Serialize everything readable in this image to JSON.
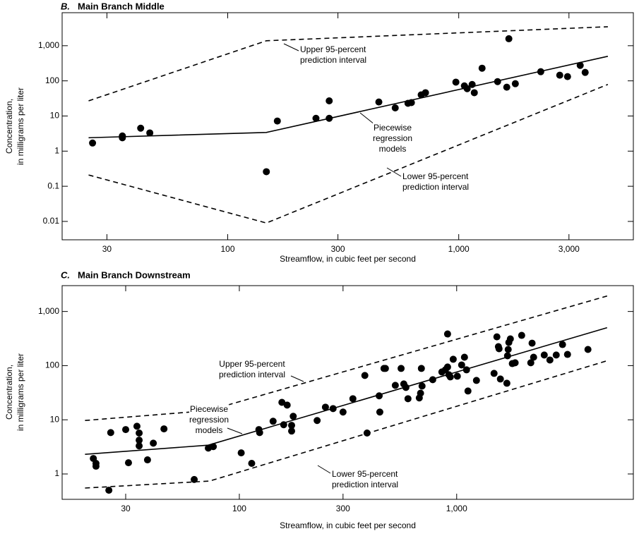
{
  "chart_data": [
    {
      "type": "scatter",
      "panel": "B.",
      "title": "Main Branch Middle",
      "x_label": "Streamflow, in cubic feet per second",
      "y_label": [
        "Concentration,",
        "in milligrams per liter"
      ],
      "log_x": true,
      "log_y": true,
      "color": "#000000",
      "xlim": [
        19.2,
        5700
      ],
      "ylim": [
        0.003,
        8700
      ],
      "xticks": [
        30,
        100,
        300,
        {
          "value": 1000,
          "label": "1,000"
        },
        {
          "value": 3000,
          "label": "3,000"
        }
      ],
      "yticks": [
        0.01,
        0.1,
        1,
        10,
        100,
        {
          "value": 1000,
          "label": "1,000"
        }
      ],
      "x": [
        26,
        35,
        35,
        42,
        46,
        147,
        164,
        241,
        275,
        275,
        451,
        531,
        603,
        624,
        688,
        718,
        972,
        1058,
        1088,
        1143,
        1168,
        1262,
        1473,
        1614,
        1648,
        1758,
        2265,
        2737,
        2958,
        3356,
        3526
      ],
      "values": [
        1.7,
        2.7,
        2.4,
        4.5,
        3.3,
        0.26,
        7.2,
        8.6,
        8.6,
        27,
        25,
        17,
        23,
        24,
        40,
        46,
        92,
        72,
        60,
        79,
        46,
        229,
        95,
        66,
        1580,
        83,
        182,
        145,
        132,
        275,
        174
      ],
      "lines": [
        {
          "style": "dashed",
          "x": [
            25,
            147,
            4420
          ],
          "values": [
            27,
            1380,
            3470
          ]
        },
        {
          "style": "solid",
          "x": [
            25,
            147,
            4420
          ],
          "values": [
            2.4,
            3.4,
            500
          ]
        },
        {
          "style": "dashed",
          "x": [
            25,
            147,
            4420
          ],
          "values": [
            0.21,
            0.009,
            79
          ]
        }
      ],
      "annotations": [
        [
          "Upper 95-percent",
          "prediction interval"
        ],
        [
          "Piecewise",
          "regression",
          "models"
        ],
        [
          "Lower 95-percent",
          "prediction interval"
        ]
      ]
    },
    {
      "type": "scatter",
      "panel": "C.",
      "title": "Main Branch Downstream",
      "x_label": "Streamflow, in cubic feet per second",
      "y_label": [
        "Concentration,",
        "in milligrams per liter"
      ],
      "log_x": true,
      "log_y": true,
      "color": "#000000",
      "xlim": [
        15.3,
        6500
      ],
      "ylim": [
        0.34,
        3000
      ],
      "xticks": [
        30,
        100,
        300,
        {
          "value": 1000,
          "label": "1,000"
        }
      ],
      "yticks": [
        1,
        10,
        100,
        {
          "value": 1000,
          "label": "1,000"
        }
      ],
      "x": [
        21.3,
        21.9,
        21.9,
        25.1,
        25.6,
        30.0,
        30.9,
        33.8,
        34.6,
        34.6,
        34.6,
        37.8,
        40.2,
        45.0,
        62.0,
        72.0,
        75.9,
        102,
        114,
        123,
        124,
        143,
        157,
        160,
        166,
        174,
        174,
        177,
        228,
        249,
        270,
        300,
        333,
        378,
        387,
        440,
        443,
        463,
        470,
        522,
        555,
        571,
        584,
        597,
        673,
        682,
        688,
        693,
        776,
        855,
        887,
        908,
        908,
        921,
        935,
        964,
        1007,
        1054,
        1086,
        1110,
        1127,
        1233,
        1486,
        1531,
        1556,
        1567,
        1589,
        1702,
        1714,
        1726,
        1738,
        1766,
        1803,
        1858,
        1991,
        2193,
        2223,
        2259,
        2529,
        2685,
        2871,
        3069,
        3236,
        4018
      ],
      "values": [
        1.93,
        1.57,
        1.39,
        0.5,
        5.8,
        6.6,
        1.61,
        7.6,
        5.7,
        4.2,
        3.3,
        1.82,
        3.7,
        6.8,
        0.79,
        3.0,
        3.2,
        2.45,
        1.57,
        6.6,
        5.8,
        9.4,
        21,
        8.1,
        18.7,
        6.2,
        7.9,
        11.6,
        9.7,
        17.1,
        16.1,
        13.9,
        24.5,
        65.8,
        5.7,
        27.7,
        13.9,
        88.7,
        88.7,
        43.3,
        88.7,
        45.9,
        39.6,
        24.5,
        25.3,
        31,
        88.7,
        42.0,
        55.0,
        76.4,
        83.6,
        94.2,
        384,
        67.8,
        61.9,
        131,
        63.8,
        103,
        143,
        83.6,
        34.0,
        53.3,
        71.9,
        340,
        224,
        205,
        56.6,
        47.3,
        152,
        199,
        268,
        312,
        109,
        113,
        362,
        113,
        260,
        143,
        157,
        127,
        157,
        245,
        161,
        199
      ],
      "lines": [
        {
          "style": "dashed",
          "x": [
            19.5,
            72,
            4920
          ],
          "values": [
            9.7,
            14.8,
            1930
          ]
        },
        {
          "style": "solid",
          "x": [
            19.5,
            72,
            4920
          ],
          "values": [
            2.3,
            3.4,
            502
          ]
        },
        {
          "style": "dashed",
          "x": [
            19.5,
            73,
            4920
          ],
          "values": [
            0.55,
            0.74,
            123
          ]
        }
      ],
      "annotations": [
        [
          "Upper 95-percent",
          "prediction interval"
        ],
        [
          "Piecewise",
          "regression",
          "models"
        ],
        [
          "Lower 95-percent",
          "prediction interval"
        ]
      ]
    }
  ]
}
